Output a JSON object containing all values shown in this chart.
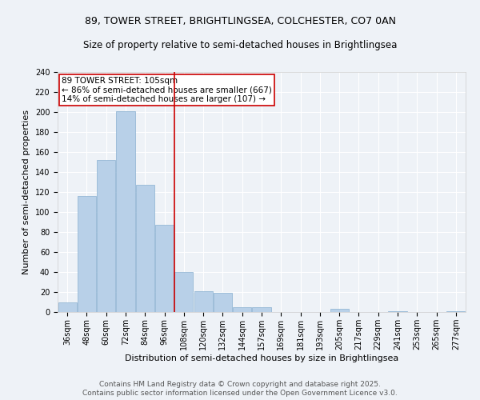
{
  "title1": "89, TOWER STREET, BRIGHTLINGSEA, COLCHESTER, CO7 0AN",
  "title2": "Size of property relative to semi-detached houses in Brightlingsea",
  "xlabel": "Distribution of semi-detached houses by size in Brightlingsea",
  "ylabel": "Number of semi-detached properties",
  "categories": [
    "36sqm",
    "48sqm",
    "60sqm",
    "72sqm",
    "84sqm",
    "96sqm",
    "108sqm",
    "120sqm",
    "132sqm",
    "144sqm",
    "157sqm",
    "169sqm",
    "181sqm",
    "193sqm",
    "205sqm",
    "217sqm",
    "229sqm",
    "241sqm",
    "253sqm",
    "265sqm",
    "277sqm"
  ],
  "values": [
    10,
    116,
    152,
    201,
    127,
    87,
    40,
    21,
    19,
    5,
    5,
    0,
    0,
    0,
    3,
    0,
    0,
    1,
    0,
    0,
    1
  ],
  "bar_color": "#b8d0e8",
  "bar_edge_color": "#8ab0d0",
  "vline_x": 5.5,
  "vline_color": "#cc0000",
  "annotation_text": "89 TOWER STREET: 105sqm\n← 86% of semi-detached houses are smaller (667)\n14% of semi-detached houses are larger (107) →",
  "annotation_box_color": "#ffffff",
  "annotation_box_edge": "#cc0000",
  "ylim": [
    0,
    240
  ],
  "yticks": [
    0,
    20,
    40,
    60,
    80,
    100,
    120,
    140,
    160,
    180,
    200,
    220,
    240
  ],
  "footer1": "Contains HM Land Registry data © Crown copyright and database right 2025.",
  "footer2": "Contains public sector information licensed under the Open Government Licence v3.0.",
  "bg_color": "#eef2f7",
  "grid_color": "#ffffff",
  "title_fontsize": 9,
  "subtitle_fontsize": 8.5,
  "axis_label_fontsize": 8,
  "tick_fontsize": 7,
  "footer_fontsize": 6.5,
  "annotation_fontsize": 7.5
}
